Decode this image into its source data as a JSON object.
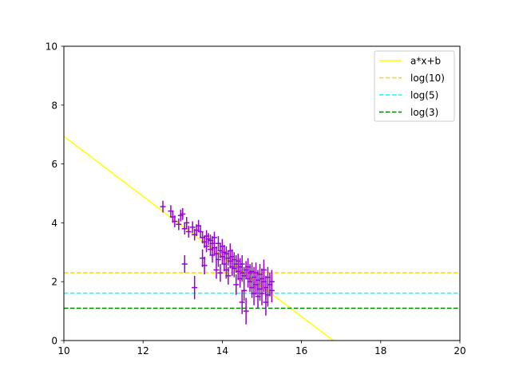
{
  "chart_data": {
    "type": "scatter",
    "title": "",
    "xlabel": "",
    "ylabel": "",
    "xlim": [
      10,
      20
    ],
    "ylim": [
      0,
      10
    ],
    "xticks": [
      "10",
      "12",
      "14",
      "16",
      "18",
      "20"
    ],
    "yticks": [
      "0",
      "2",
      "4",
      "6",
      "8",
      "10"
    ],
    "grid": false,
    "legend_position": "top-right",
    "colors": {
      "points": "#9400d3",
      "fit": "#ffff00",
      "log10": "#ffd700",
      "log5": "#00ffff",
      "log3": "#008000"
    },
    "series": [
      {
        "name": "a*x+b",
        "kind": "line",
        "style": "solid",
        "color": "#ffff00",
        "x": [
          10,
          16.8
        ],
        "y": [
          6.94,
          0
        ]
      },
      {
        "name": "log(10)",
        "kind": "hline",
        "style": "dashed",
        "color": "#ffd700",
        "y": 2.303
      },
      {
        "name": "log(5)",
        "kind": "hline",
        "style": "dashed",
        "color": "#00ffff",
        "y": 1.609
      },
      {
        "name": "log(3)",
        "kind": "hline",
        "style": "dashed",
        "color": "#008000",
        "y": 1.099
      }
    ],
    "points": [
      [
        12.5,
        4.55,
        0.2
      ],
      [
        12.7,
        4.4,
        0.2
      ],
      [
        12.75,
        4.2,
        0.2
      ],
      [
        12.8,
        4.05,
        0.2
      ],
      [
        12.9,
        3.95,
        0.2
      ],
      [
        12.95,
        4.25,
        0.2
      ],
      [
        13.0,
        4.3,
        0.2
      ],
      [
        13.05,
        3.8,
        0.2
      ],
      [
        13.05,
        2.6,
        0.3
      ],
      [
        13.1,
        4.0,
        0.2
      ],
      [
        13.15,
        3.7,
        0.2
      ],
      [
        13.25,
        3.85,
        0.2
      ],
      [
        13.3,
        3.6,
        0.2
      ],
      [
        13.3,
        1.8,
        0.4
      ],
      [
        13.35,
        3.75,
        0.2
      ],
      [
        13.4,
        3.9,
        0.2
      ],
      [
        13.45,
        3.7,
        0.2
      ],
      [
        13.5,
        3.5,
        0.2
      ],
      [
        13.5,
        2.8,
        0.3
      ],
      [
        13.55,
        2.55,
        0.3
      ],
      [
        13.55,
        3.35,
        0.2
      ],
      [
        13.6,
        3.55,
        0.2
      ],
      [
        13.6,
        3.2,
        0.2
      ],
      [
        13.65,
        3.45,
        0.2
      ],
      [
        13.7,
        3.1,
        0.2
      ],
      [
        13.7,
        3.4,
        0.2
      ],
      [
        13.75,
        3.3,
        0.25
      ],
      [
        13.75,
        2.9,
        0.25
      ],
      [
        13.8,
        3.15,
        0.25
      ],
      [
        13.8,
        3.5,
        0.2
      ],
      [
        13.85,
        2.95,
        0.25
      ],
      [
        13.85,
        2.4,
        0.3
      ],
      [
        13.9,
        3.3,
        0.25
      ],
      [
        13.9,
        2.75,
        0.25
      ],
      [
        13.95,
        3.05,
        0.25
      ],
      [
        13.95,
        2.3,
        0.3
      ],
      [
        14.0,
        3.2,
        0.25
      ],
      [
        14.0,
        2.85,
        0.25
      ],
      [
        14.05,
        2.6,
        0.25
      ],
      [
        14.05,
        3.0,
        0.25
      ],
      [
        14.1,
        2.95,
        0.25
      ],
      [
        14.1,
        2.4,
        0.3
      ],
      [
        14.15,
        2.8,
        0.25
      ],
      [
        14.15,
        2.2,
        0.3
      ],
      [
        14.2,
        2.7,
        0.25
      ],
      [
        14.2,
        3.05,
        0.25
      ],
      [
        14.25,
        2.5,
        0.3
      ],
      [
        14.25,
        2.85,
        0.25
      ],
      [
        14.3,
        2.45,
        0.3
      ],
      [
        14.3,
        2.75,
        0.25
      ],
      [
        14.35,
        2.6,
        0.3
      ],
      [
        14.35,
        1.9,
        0.35
      ],
      [
        14.4,
        2.35,
        0.3
      ],
      [
        14.4,
        2.7,
        0.25
      ],
      [
        14.45,
        2.5,
        0.3
      ],
      [
        14.45,
        2.1,
        0.3
      ],
      [
        14.5,
        2.3,
        0.3
      ],
      [
        14.5,
        1.3,
        0.4
      ],
      [
        14.5,
        2.6,
        0.3
      ],
      [
        14.55,
        2.2,
        0.3
      ],
      [
        14.55,
        1.7,
        0.35
      ],
      [
        14.6,
        2.4,
        0.3
      ],
      [
        14.6,
        1.0,
        0.45
      ],
      [
        14.65,
        2.1,
        0.3
      ],
      [
        14.65,
        2.5,
        0.3
      ],
      [
        14.7,
        2.0,
        0.35
      ],
      [
        14.7,
        2.3,
        0.3
      ],
      [
        14.75,
        1.8,
        0.35
      ],
      [
        14.75,
        2.35,
        0.3
      ],
      [
        14.8,
        2.15,
        0.35
      ],
      [
        14.8,
        1.6,
        0.4
      ],
      [
        14.85,
        2.3,
        0.35
      ],
      [
        14.85,
        1.9,
        0.35
      ],
      [
        14.9,
        2.05,
        0.35
      ],
      [
        14.9,
        1.5,
        0.4
      ],
      [
        14.95,
        2.25,
        0.35
      ],
      [
        14.95,
        1.75,
        0.4
      ],
      [
        15.0,
        2.1,
        0.35
      ],
      [
        15.0,
        1.6,
        0.4
      ],
      [
        15.05,
        2.0,
        0.35
      ],
      [
        15.05,
        2.4,
        0.35
      ],
      [
        15.1,
        1.8,
        0.4
      ],
      [
        15.1,
        1.3,
        0.45
      ],
      [
        15.15,
        2.15,
        0.35
      ],
      [
        15.15,
        1.55,
        0.4
      ],
      [
        15.2,
        1.9,
        0.4
      ],
      [
        15.25,
        2.0,
        0.4
      ],
      [
        15.25,
        1.7,
        0.4
      ]
    ]
  }
}
